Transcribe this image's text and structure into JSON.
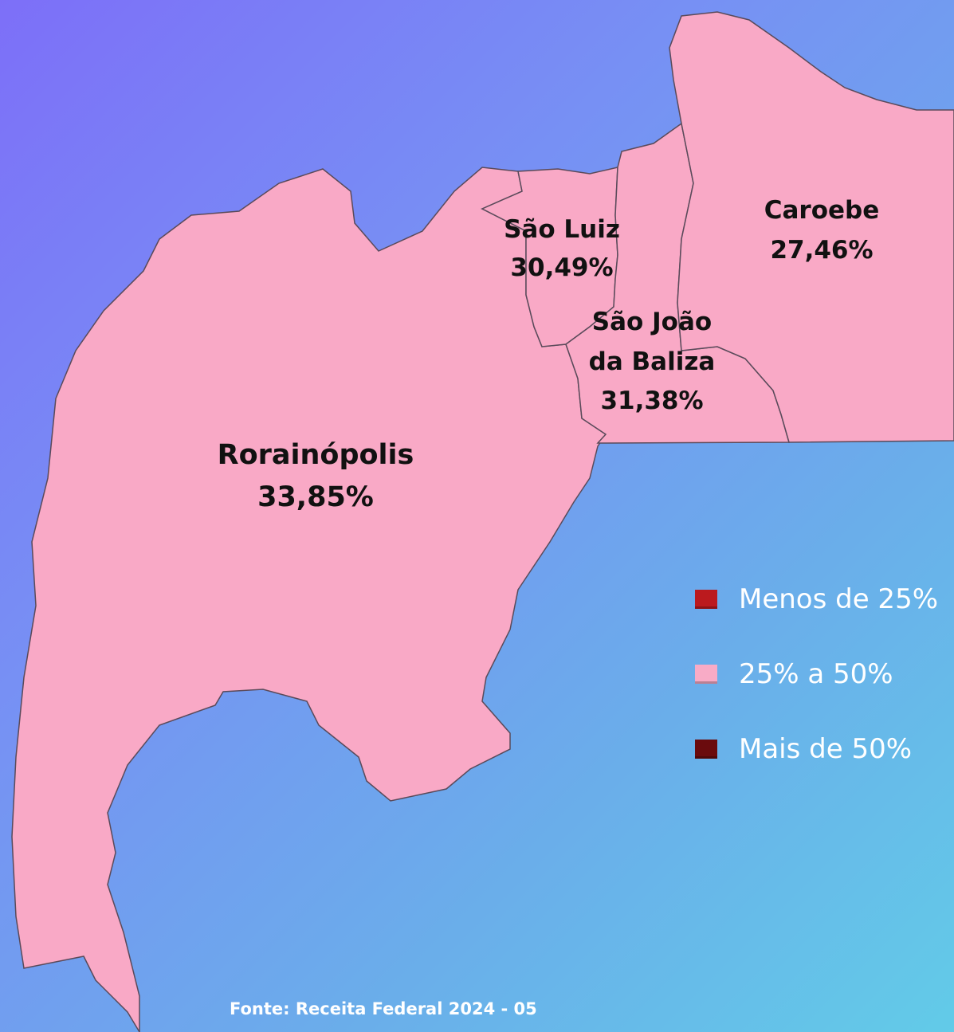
{
  "regions": [
    {
      "name": "Rorainópolis",
      "value": "33,85%"
    },
    {
      "name": "São Luiz",
      "value": "30,49%"
    },
    {
      "name": "São João da Baliza",
      "value": "31,38%"
    },
    {
      "name": "Caroebe",
      "value": "27,46%"
    }
  ],
  "legend": [
    {
      "label": "Menos de 25%",
      "color": "#bb1a1e"
    },
    {
      "label": "25% a 50%",
      "color": "#f8abc6"
    },
    {
      "label": "Mais de 50%",
      "color": "#6a0b0d"
    }
  ],
  "source": "Fonte: Receita Federal 2024 - 05"
}
